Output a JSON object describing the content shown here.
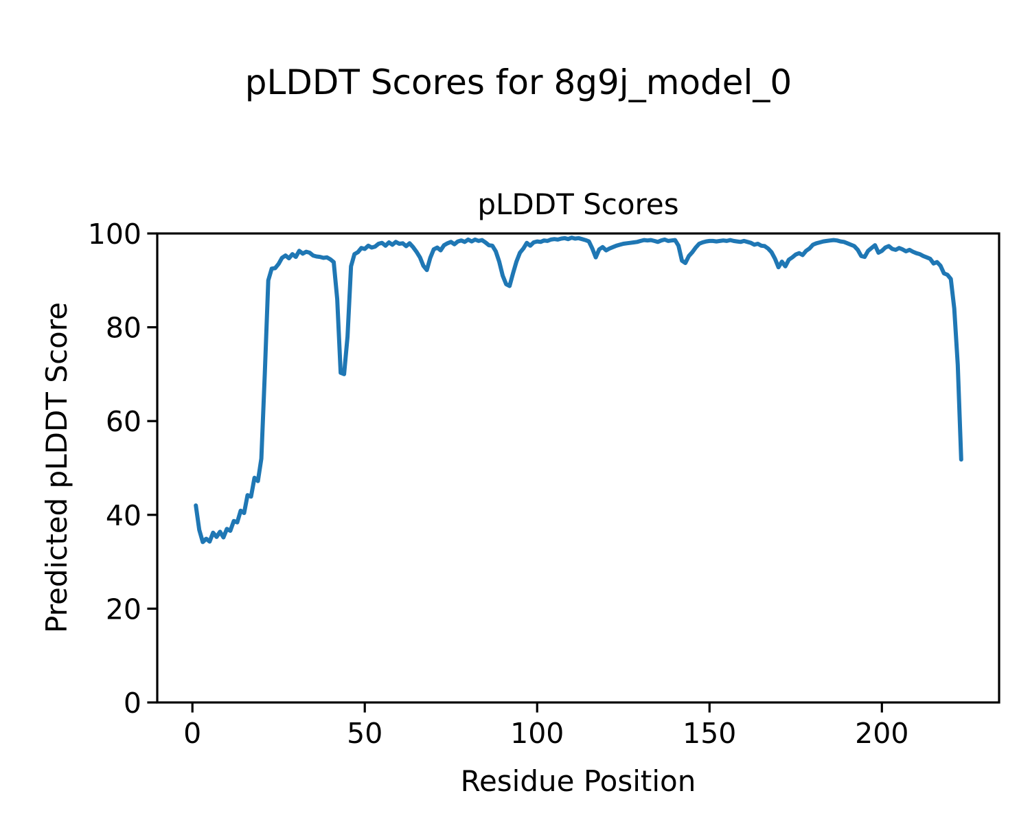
{
  "figure": {
    "suptitle": "pLDDT Scores for 8g9j_model_0",
    "background": "#ffffff"
  },
  "chart_data": {
    "type": "line",
    "title": "pLDDT Scores",
    "xlabel": "Residue Position",
    "ylabel": "Predicted pLDDT Score",
    "xlim": [
      -10.2,
      234
    ],
    "ylim": [
      0,
      100
    ],
    "xticks": [
      0,
      50,
      100,
      150,
      200
    ],
    "yticks": [
      0,
      20,
      40,
      60,
      80,
      100
    ],
    "grid": false,
    "legend": "none",
    "line_color": "#1f77b4",
    "series": [
      {
        "name": "pLDDT",
        "color": "#1f77b4",
        "x_start": 1,
        "values": [
          42.0,
          36.8,
          34.2,
          34.9,
          34.3,
          36.2,
          35.3,
          36.4,
          35.2,
          37.0,
          36.6,
          38.7,
          38.4,
          40.9,
          40.4,
          44.2,
          43.9,
          47.9,
          47.2,
          52.0,
          70.0,
          90.0,
          92.5,
          92.6,
          93.5,
          94.8,
          95.3,
          94.7,
          95.6,
          95.0,
          96.3,
          95.7,
          96.1,
          95.9,
          95.3,
          95.1,
          95.0,
          94.8,
          94.9,
          94.5,
          93.9,
          86.0,
          70.3,
          70.0,
          78.0,
          93.0,
          95.6,
          96.0,
          96.9,
          96.7,
          97.4,
          97.0,
          97.2,
          97.8,
          98.0,
          97.4,
          98.1,
          97.6,
          98.2,
          97.8,
          97.9,
          97.3,
          97.9,
          97.1,
          96.1,
          94.9,
          93.1,
          92.2,
          94.8,
          96.6,
          97.0,
          96.4,
          97.5,
          97.9,
          98.2,
          97.7,
          98.3,
          98.5,
          98.2,
          98.7,
          98.3,
          98.7,
          98.4,
          98.6,
          98.1,
          97.5,
          97.4,
          96.2,
          94.0,
          91.0,
          89.2,
          88.8,
          91.5,
          94.0,
          95.9,
          96.8,
          98.0,
          97.4,
          98.1,
          98.3,
          98.2,
          98.5,
          98.4,
          98.7,
          98.8,
          98.7,
          98.9,
          99.0,
          98.8,
          99.1,
          98.9,
          99.0,
          98.8,
          98.6,
          98.3,
          96.8,
          94.9,
          96.6,
          97.1,
          96.4,
          96.8,
          97.1,
          97.4,
          97.6,
          97.8,
          97.9,
          98.0,
          98.1,
          98.2,
          98.4,
          98.6,
          98.5,
          98.6,
          98.4,
          98.2,
          98.5,
          98.7,
          98.4,
          98.5,
          98.6,
          97.4,
          94.2,
          93.7,
          95.2,
          96.0,
          97.0,
          97.8,
          98.1,
          98.3,
          98.4,
          98.4,
          98.3,
          98.4,
          98.5,
          98.4,
          98.6,
          98.4,
          98.3,
          98.2,
          98.4,
          98.2,
          98.0,
          97.6,
          97.8,
          97.4,
          97.3,
          96.8,
          96.0,
          94.6,
          92.8,
          94.0,
          93.0,
          94.4,
          94.9,
          95.5,
          95.8,
          95.4,
          96.3,
          96.8,
          97.6,
          97.9,
          98.1,
          98.3,
          98.4,
          98.5,
          98.6,
          98.5,
          98.3,
          98.2,
          97.9,
          97.6,
          97.3,
          96.5,
          95.2,
          95.0,
          96.3,
          96.9,
          97.5,
          95.9,
          96.3,
          97.0,
          97.3,
          96.7,
          96.5,
          96.9,
          96.6,
          96.2,
          96.5,
          96.1,
          95.8,
          95.6,
          95.2,
          94.9,
          94.6,
          93.6,
          93.9,
          93.1,
          91.5,
          91.2,
          90.3,
          84.0,
          72.0,
          51.8
        ]
      }
    ]
  }
}
